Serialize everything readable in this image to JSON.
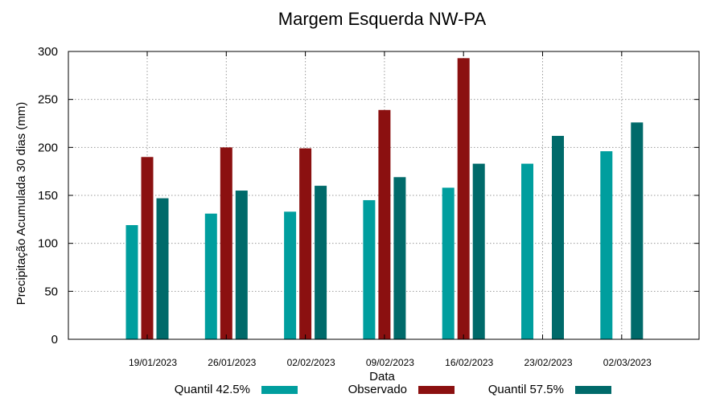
{
  "chart_data": {
    "type": "bar",
    "title": "Margem Esquerda NW-PA",
    "xlabel": "Data",
    "ylabel": "Precipitação Acumulada 30 dias (mm)",
    "ylim": [
      0,
      300
    ],
    "yticks": [
      0,
      50,
      100,
      150,
      200,
      250,
      300
    ],
    "grid": true,
    "legend_position": "bottom",
    "categories": [
      "19/01/2023",
      "26/01/2023",
      "02/02/2023",
      "09/02/2023",
      "16/02/2023",
      "23/02/2023",
      "02/03/2023"
    ],
    "series": [
      {
        "name": "Quantil 42.5%",
        "color": "#009e9e",
        "values": [
          119,
          131,
          133,
          145,
          158,
          183,
          196
        ]
      },
      {
        "name": "Observado",
        "color": "#8b1010",
        "values": [
          190,
          200,
          199,
          239,
          293,
          null,
          null
        ]
      },
      {
        "name": "Quantil 57.5%",
        "color": "#006a6a",
        "values": [
          147,
          155,
          160,
          169,
          183,
          212,
          226
        ]
      }
    ]
  }
}
